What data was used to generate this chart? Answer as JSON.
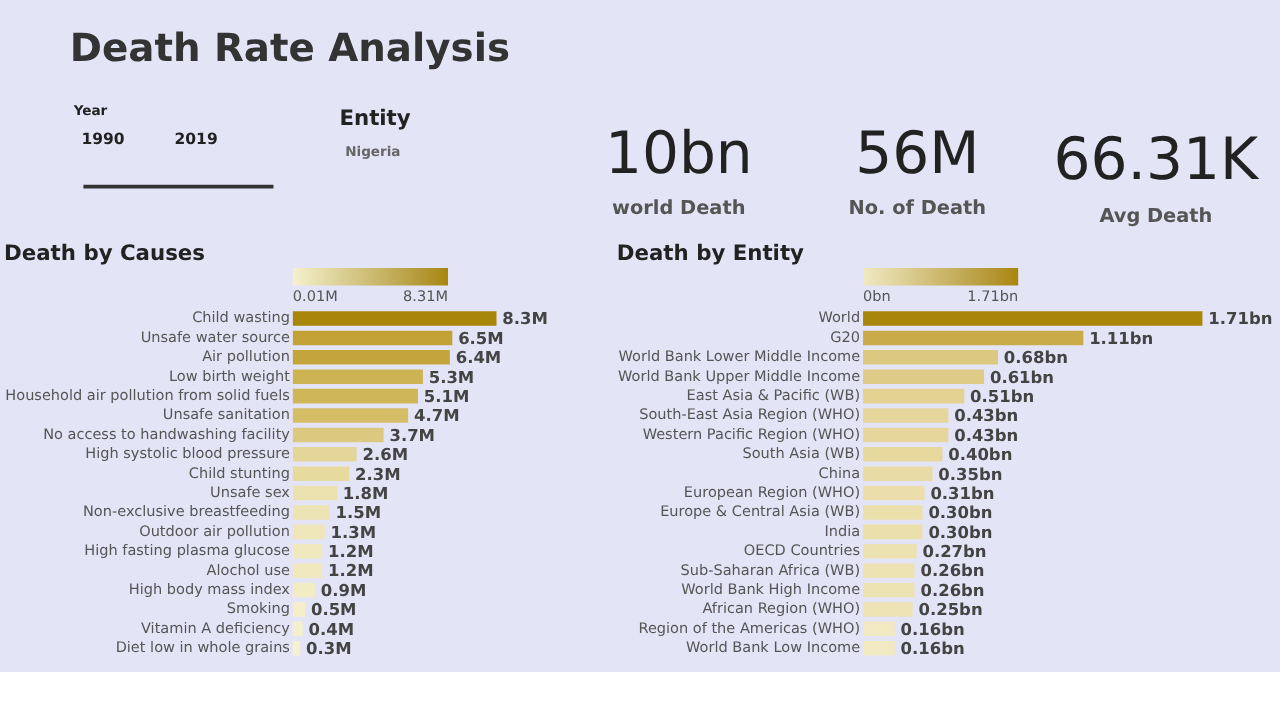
{
  "chart_data": [
    {
      "type": "other",
      "title": "Death Rate Analysis",
      "annotations": [
        "Year",
        "1990",
        "2019",
        "Entity",
        "Nigeria",
        "10bn",
        "world Death",
        "56M",
        "No. of Death",
        "66.31K",
        "Avg Death"
      ]
    },
    {
      "type": "bar",
      "orientation": "horizontal",
      "title": "Death by Causes",
      "categories": [
        "Child wasting",
        "Unsafe water source",
        "Air pollution",
        "Low birth weight",
        "Household air pollution from solid fuels",
        "Unsafe sanitation",
        "No access to handwashing facility",
        "High systolic blood pressure",
        "Child stunting",
        "Unsafe sex",
        "Non-exclusive breastfeeding",
        "Outdoor air pollution",
        "High fasting plasma glucose",
        "Alochol use",
        "High body mass index",
        "Smoking",
        "Vitamin A deficiency",
        "Diet low in whole grains"
      ],
      "values": [
        8.3,
        6.5,
        6.4,
        5.3,
        5.1,
        4.7,
        3.7,
        2.6,
        2.3,
        1.8,
        1.5,
        1.3,
        1.2,
        1.2,
        0.9,
        0.5,
        0.4,
        0.3
      ],
      "value_labels": [
        "8.3M",
        "6.5M",
        "6.4M",
        "5.3M",
        "5.1M",
        "4.7M",
        "3.7M",
        "2.6M",
        "2.3M",
        "1.8M",
        "1.5M",
        "1.3M",
        "1.2M",
        "1.2M",
        "0.9M",
        "0.5M",
        "0.4M",
        "0.3M"
      ],
      "colors": [
        "#a8860a",
        "#c2a236",
        "#c4a53c",
        "#cdb352",
        "#cfb658",
        "#d4bd66",
        "#dcc97f",
        "#e4d699",
        "#e7da9f",
        "#ebe1ae",
        "#ede4b5",
        "#efe7ba",
        "#f0e9bd",
        "#f0e9bd",
        "#f2ecc3",
        "#f4efca",
        "#f5f0cc",
        "#f5f1ce"
      ],
      "clim": [
        0.01,
        8.31
      ],
      "cticks": [
        {
          "value": 0.01,
          "label": "0.01M"
        },
        {
          "value": 8.31,
          "label": "8.31M"
        }
      ]
    },
    {
      "type": "bar",
      "orientation": "horizontal",
      "title": "Death by Entity",
      "categories": [
        "World",
        "G20",
        "World Bank Lower Middle Income",
        "World Bank Upper Middle Income",
        "East Asia & Pacific (WB)",
        "South-East Asia Region (WHO)",
        "Western Pacific Region (WHO)",
        "South Asia (WB)",
        "China",
        "European Region (WHO)",
        "Europe & Central Asia (WB)",
        "India",
        "OECD Countries",
        "Sub-Saharan Africa (WB)",
        "World Bank High Income",
        "African Region (WHO)",
        "Region of the Americas (WHO)",
        "World Bank Low Income"
      ],
      "values": [
        1.71,
        1.11,
        0.68,
        0.61,
        0.51,
        0.43,
        0.43,
        0.4,
        0.35,
        0.31,
        0.3,
        0.3,
        0.27,
        0.26,
        0.26,
        0.25,
        0.16,
        0.16
      ],
      "value_labels": [
        "1.71bn",
        "1.11bn",
        "0.68bn",
        "0.61bn",
        "0.51bn",
        "0.43bn",
        "0.43bn",
        "0.40bn",
        "0.35bn",
        "0.31bn",
        "0.30bn",
        "0.30bn",
        "0.27bn",
        "0.26bn",
        "0.26bn",
        "0.25bn",
        "0.16bn",
        "0.16bn"
      ],
      "colors": [
        "#a8860a",
        "#c9ab4a",
        "#ddc882",
        "#dfcb88",
        "#e3d292",
        "#e6d69b",
        "#e6d69b",
        "#e7d89e",
        "#e9dba5",
        "#ebdeab",
        "#ebdfac",
        "#ebdfac",
        "#ece1b0",
        "#ede2b2",
        "#ede2b2",
        "#ede3b4",
        "#f1e9c2",
        "#f1e9c2"
      ],
      "clim": [
        0,
        1.71
      ],
      "cticks": [
        {
          "value": 0,
          "label": "0bn"
        },
        {
          "value": 1.71,
          "label": "1.71bn"
        }
      ]
    }
  ]
}
